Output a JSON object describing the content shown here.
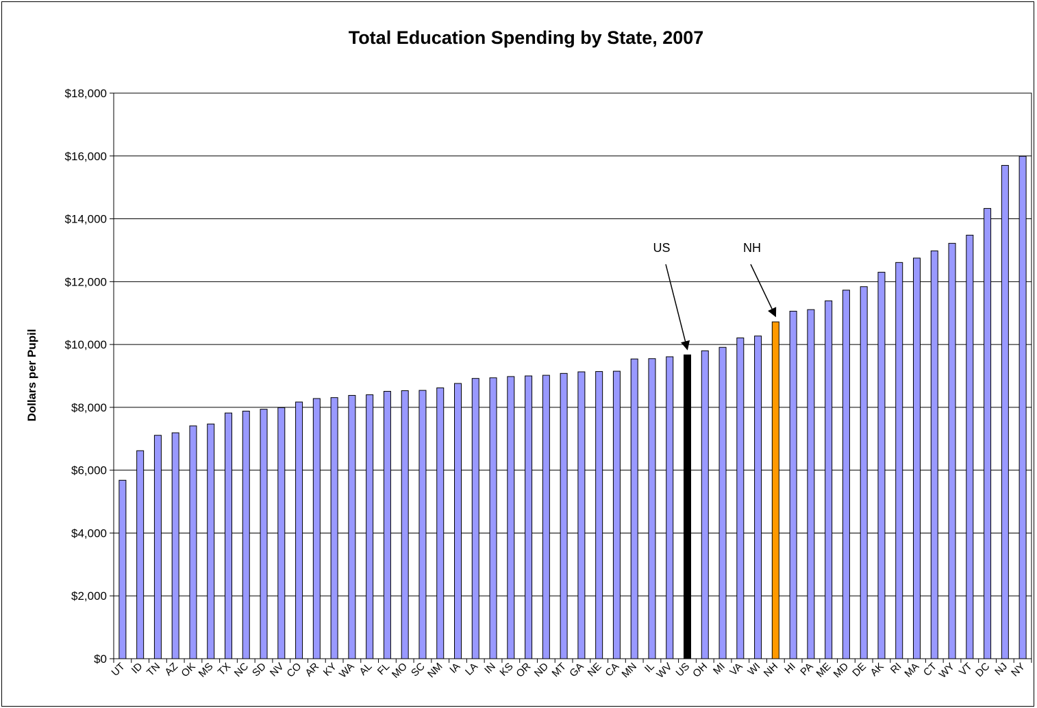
{
  "chart_data": {
    "type": "bar",
    "title": "Total Education Spending by State, 2007",
    "xlabel": "",
    "ylabel": "Dollars per Pupil",
    "ylim": [
      0,
      18000
    ],
    "yticks": [
      0,
      2000,
      4000,
      6000,
      8000,
      10000,
      12000,
      14000,
      16000,
      18000
    ],
    "ytick_labels": [
      "$0",
      "$2,000",
      "$4,000",
      "$6,000",
      "$8,000",
      "$10,000",
      "$12,000",
      "$14,000",
      "$16,000",
      "$18,000"
    ],
    "grid": "horizontal",
    "legend": "none",
    "categories": [
      "UT",
      "ID",
      "TN",
      "AZ",
      "OK",
      "MS",
      "TX",
      "NC",
      "SD",
      "NV",
      "CO",
      "AR",
      "KY",
      "WA",
      "AL",
      "FL",
      "MO",
      "SC",
      "NM",
      "IA",
      "LA",
      "IN",
      "KS",
      "OR",
      "ND",
      "MT",
      "GA",
      "NE",
      "CA",
      "MN",
      "IL",
      "WV",
      "US",
      "OH",
      "MI",
      "VA",
      "WI",
      "NH",
      "HI",
      "PA",
      "ME",
      "MD",
      "DE",
      "AK",
      "RI",
      "MA",
      "CT",
      "WY",
      "VT",
      "DC",
      "NJ",
      "NY"
    ],
    "values": [
      5680,
      6620,
      7110,
      7190,
      7410,
      7470,
      7820,
      7880,
      7940,
      7990,
      8170,
      8280,
      8310,
      8380,
      8400,
      8510,
      8530,
      8540,
      8620,
      8760,
      8920,
      8940,
      8980,
      9000,
      9020,
      9080,
      9130,
      9140,
      9150,
      9540,
      9550,
      9610,
      9670,
      9800,
      9910,
      10210,
      10270,
      10720,
      11060,
      11110,
      11390,
      11730,
      11840,
      12300,
      12610,
      12750,
      12980,
      13220,
      13480,
      14330,
      15700,
      15990
    ],
    "colors": {
      "default": "#9999FF",
      "US": "#000000",
      "NH": "#FF9900"
    },
    "annotations": [
      {
        "text": "US",
        "target": "US"
      },
      {
        "text": "NH",
        "target": "NH"
      }
    ]
  }
}
